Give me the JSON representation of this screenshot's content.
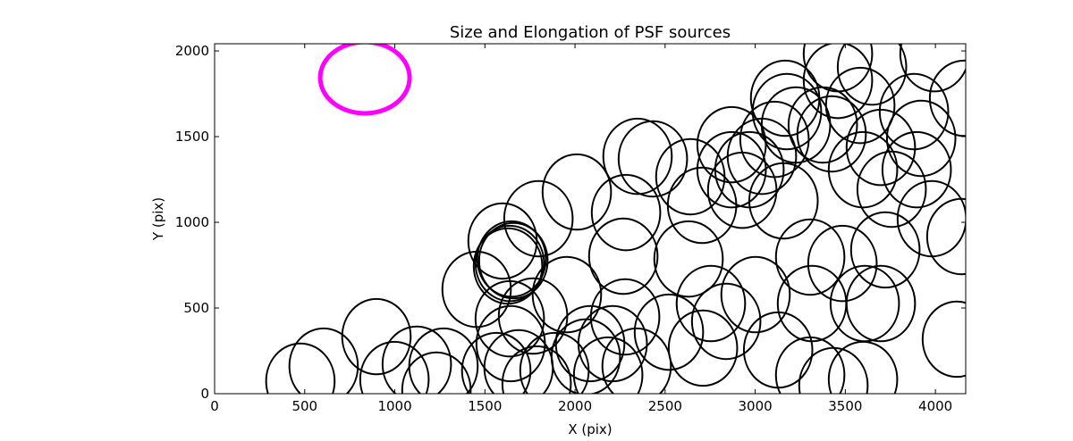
{
  "chart_data": {
    "type": "scatter",
    "title": "Size and Elongation of PSF sources",
    "xlabel": "X (pix)",
    "ylabel": "Y (pix)",
    "xlim": [
      0,
      4168
    ],
    "ylim": [
      0,
      2042
    ],
    "xticks": [
      0,
      500,
      1000,
      1500,
      2000,
      2500,
      3000,
      3500,
      4000
    ],
    "yticks": [
      0,
      500,
      1000,
      1500,
      2000
    ],
    "grid": false,
    "reference_ellipse": {
      "x": 834,
      "y": 1844,
      "semi_x": 248,
      "semi_y": 208,
      "color": "#ff00ff"
    },
    "source_color": "#000000",
    "source_semi_x": 190,
    "source_semi_y": 220,
    "sources": [
      [
        476,
        73
      ],
      [
        605,
        161
      ],
      [
        898,
        333
      ],
      [
        998,
        83
      ],
      [
        1122,
        172
      ],
      [
        1270,
        161
      ],
      [
        1231,
        21
      ],
      [
        1454,
        609
      ],
      [
        1598,
        891
      ],
      [
        1638,
        437
      ],
      [
        1638,
        760
      ],
      [
        1648,
        786
      ],
      [
        1628,
        745
      ],
      [
        1658,
        776
      ],
      [
        1797,
        1021
      ],
      [
        1767,
        453
      ],
      [
        2010,
        1177
      ],
      [
        1955,
        578
      ],
      [
        2283,
        1057
      ],
      [
        2347,
        1385
      ],
      [
        2432,
        1370
      ],
      [
        2268,
        802
      ],
      [
        2278,
        448
      ],
      [
        2209,
        292
      ],
      [
        2521,
        359
      ],
      [
        2630,
        786
      ],
      [
        2640,
        1266
      ],
      [
        2705,
        1099
      ],
      [
        2754,
        526
      ],
      [
        2839,
        422
      ],
      [
        2869,
        1453
      ],
      [
        2869,
        1307
      ],
      [
        2928,
        1187
      ],
      [
        2968,
        1307
      ],
      [
        3037,
        1385
      ],
      [
        3107,
        1484
      ],
      [
        3157,
        1125
      ],
      [
        3166,
        1724
      ],
      [
        3176,
        1646
      ],
      [
        3226,
        1568
      ],
      [
        3305,
        797
      ],
      [
        3315,
        526
      ],
      [
        3375,
        1568
      ],
      [
        3424,
        1516
      ],
      [
        3459,
        1828
      ],
      [
        3484,
        760
      ],
      [
        3583,
        1682
      ],
      [
        3608,
        526
      ],
      [
        3598,
        1307
      ],
      [
        3697,
        526
      ],
      [
        3722,
        839
      ],
      [
        3757,
        1193
      ],
      [
        3697,
        1437
      ],
      [
        3881,
        1646
      ],
      [
        3921,
        1490
      ],
      [
        3896,
        1307
      ],
      [
        3980,
        1021
      ],
      [
        3995,
        1984
      ],
      [
        4119,
        318
      ],
      [
        4144,
        917
      ],
      [
        4159,
        1724
      ],
      [
        1563,
        135
      ],
      [
        1687,
        151
      ],
      [
        1787,
        57
      ],
      [
        1886,
        135
      ],
      [
        2060,
        214
      ],
      [
        2184,
        109
      ],
      [
        2342,
        161
      ],
      [
        2710,
        266
      ],
      [
        3127,
        255
      ],
      [
        3305,
        109
      ],
      [
        3434,
        47
      ],
      [
        3598,
        83
      ],
      [
        2084,
        292
      ],
      [
        3648,
        1906
      ],
      [
        3459,
        1984
      ],
      [
        3002,
        578
      ],
      [
        1643,
        292
      ]
    ]
  }
}
